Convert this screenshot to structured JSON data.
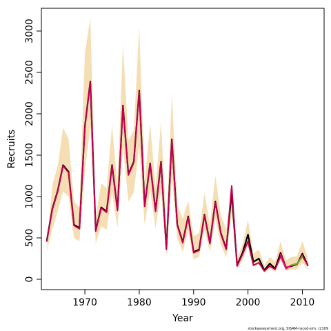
{
  "chart_data": {
    "type": "line",
    "title": "",
    "xlabel": "Year",
    "ylabel": "Recruits",
    "xlim": [
      1962,
      2014
    ],
    "ylim": [
      -125,
      3275
    ],
    "xticks": [
      1970,
      1980,
      1990,
      2000,
      2010
    ],
    "yticks": [
      0,
      500,
      1000,
      1500,
      2000,
      2500,
      3000
    ],
    "grid": false,
    "legend": "none",
    "credit": "stockassessment.org, SISAM-nscod-sim, r2109",
    "colors": {
      "band": "#f5deb3",
      "estimate": "#000000",
      "retro": "#c2004f",
      "retro_alt": "#ff0080",
      "retro_end": "#6ab023"
    },
    "x": [
      1963,
      1964,
      1965,
      1966,
      1967,
      1968,
      1969,
      1970,
      1971,
      1972,
      1973,
      1974,
      1975,
      1976,
      1977,
      1978,
      1979,
      1980,
      1981,
      1982,
      1983,
      1984,
      1985,
      1986,
      1987,
      1988,
      1989,
      1990,
      1991,
      1992,
      1993,
      1994,
      1995,
      1996,
      1997,
      1998,
      1999,
      2000,
      2001,
      2002,
      2003,
      2004,
      2005,
      2006,
      2007,
      2008,
      2009,
      2010,
      2011
    ],
    "series": [
      {
        "role": "estimate",
        "values": [
          470,
          850,
          1070,
          1380,
          1300,
          660,
          620,
          1850,
          2390,
          590,
          870,
          820,
          1380,
          840,
          2100,
          1270,
          1420,
          2280,
          890,
          1400,
          830,
          1420,
          370,
          1690,
          660,
          450,
          760,
          330,
          360,
          780,
          440,
          940,
          560,
          370,
          1050,
          170,
          320,
          540,
          210,
          250,
          110,
          190,
          130,
          320,
          140,
          160,
          180,
          310,
          170
        ]
      },
      {
        "role": "retro",
        "values": [
          460,
          840,
          1060,
          1370,
          1290,
          650,
          610,
          1840,
          2380,
          580,
          860,
          810,
          1370,
          830,
          2090,
          1260,
          1410,
          2270,
          880,
          1390,
          820,
          1410,
          360,
          1680,
          650,
          440,
          750,
          320,
          350,
          770,
          430,
          930,
          550,
          360,
          1130,
          160,
          300,
          460,
          170,
          200,
          100,
          160,
          120,
          280,
          130,
          170,
          180,
          280,
          170
        ]
      }
    ],
    "retro_tails": [
      {
        "x": [
          2006,
          2007,
          2008,
          2009,
          2010
        ],
        "values": [
          300,
          130,
          170,
          180,
          290
        ],
        "color_key": "retro_alt"
      },
      {
        "x": [
          2008,
          2009,
          2010
        ],
        "values": [
          170,
          190,
          270
        ],
        "color_key": "retro_end"
      }
    ],
    "band_upper": [
      350,
      1140,
      1370,
      1830,
      1700,
      950,
      860,
      2730,
      3160,
      750,
      1160,
      1100,
      1860,
      1140,
      2840,
      1680,
      1800,
      3050,
      1180,
      1880,
      1110,
      1900,
      600,
      2250,
      900,
      730,
      950,
      520,
      560,
      1050,
      650,
      1250,
      780,
      600,
      1130,
      250,
      420,
      720,
      310,
      360,
      170,
      270,
      210,
      460,
      230,
      270,
      280,
      460,
      270
    ],
    "band_lower": [
      340,
      600,
      820,
      1060,
      1000,
      500,
      460,
      1300,
      1860,
      430,
      640,
      600,
      1050,
      620,
      1610,
      940,
      1050,
      1610,
      650,
      1080,
      610,
      1070,
      270,
      1250,
      490,
      330,
      590,
      240,
      270,
      600,
      330,
      730,
      420,
      260,
      810,
      120,
      230,
      400,
      150,
      180,
      80,
      130,
      90,
      230,
      100,
      120,
      120,
      200,
      120
    ]
  }
}
